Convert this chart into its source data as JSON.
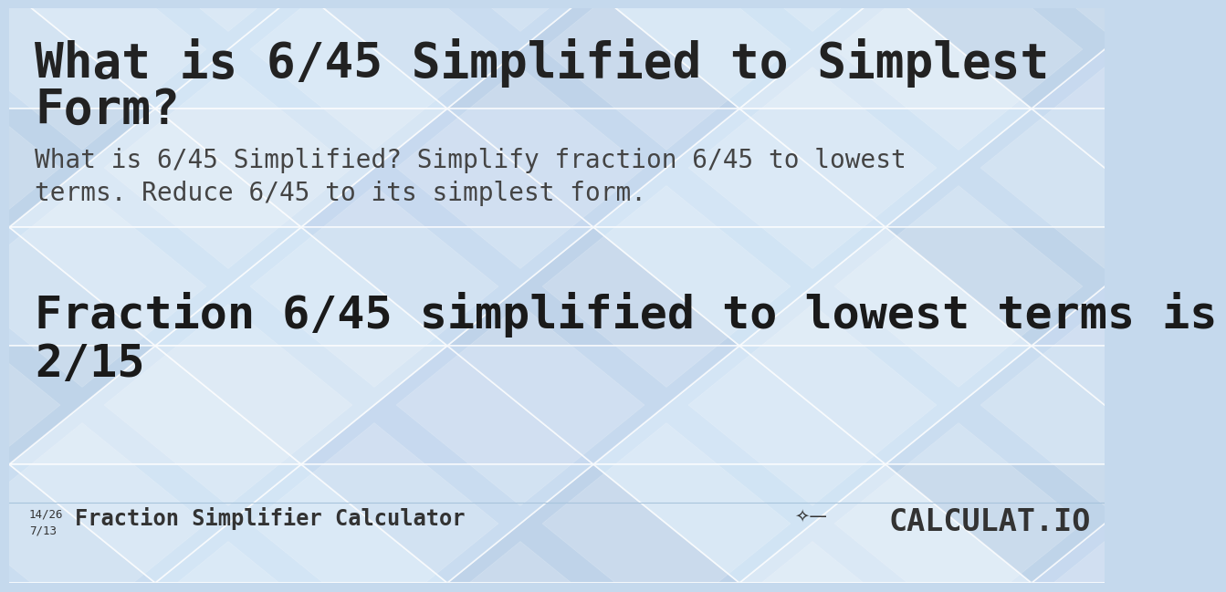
{
  "title_line1": "What is 6/45 Simplified to Simplest",
  "title_line2": "Form?",
  "subtitle_line1": "What is 6/45 Simplified? Simplify fraction 6/45 to lowest",
  "subtitle_line2": "terms. Reduce 6/45 to its simplest form.",
  "result_line1": "Fraction 6/45 simplified to lowest terms is",
  "result_line2": "2/15",
  "footer_fraction_top": "14/26",
  "footer_fraction_bottom": "7/13",
  "footer_text": "Fraction Simplifier Calculator",
  "footer_brand": "CALCULAT.IO",
  "bg_color": "#c5d9ed",
  "title_color": "#222222",
  "subtitle_color": "#444444",
  "result_color": "#1a1a1a",
  "footer_color": "#333333",
  "tri_colors": [
    "#ccdff2",
    "#d8eaf8",
    "#bdd2e8",
    "#e2eef8",
    "#c8daf0",
    "#daeaf8"
  ],
  "tri_white": "#ffffff",
  "title_fontsize": 38,
  "subtitle_fontsize": 20,
  "result_fontsize": 36,
  "footer_fontsize": 17,
  "footer_brand_fontsize": 24
}
